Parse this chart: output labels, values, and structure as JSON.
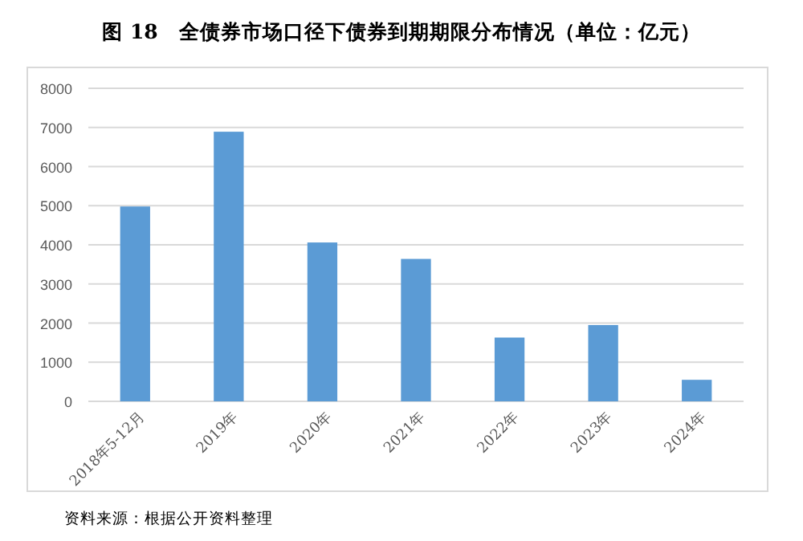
{
  "chart_data": {
    "type": "bar",
    "title": "图 18　全债券市场口径下债券到期期限分布情况（单位：亿元）",
    "categories": [
      "2018年5-12月",
      "2019年",
      "2020年",
      "2021年",
      "2022年",
      "2023年",
      "2024年"
    ],
    "values": [
      4980,
      6890,
      4060,
      3640,
      1630,
      1950,
      550
    ],
    "color": "#5b9bd5",
    "ylim": [
      0,
      8000
    ],
    "yticks": [
      0,
      1000,
      2000,
      3000,
      4000,
      5000,
      6000,
      7000,
      8000
    ],
    "grid": "y",
    "annotations": [
      "资料来源：根据公开资料整理"
    ]
  }
}
